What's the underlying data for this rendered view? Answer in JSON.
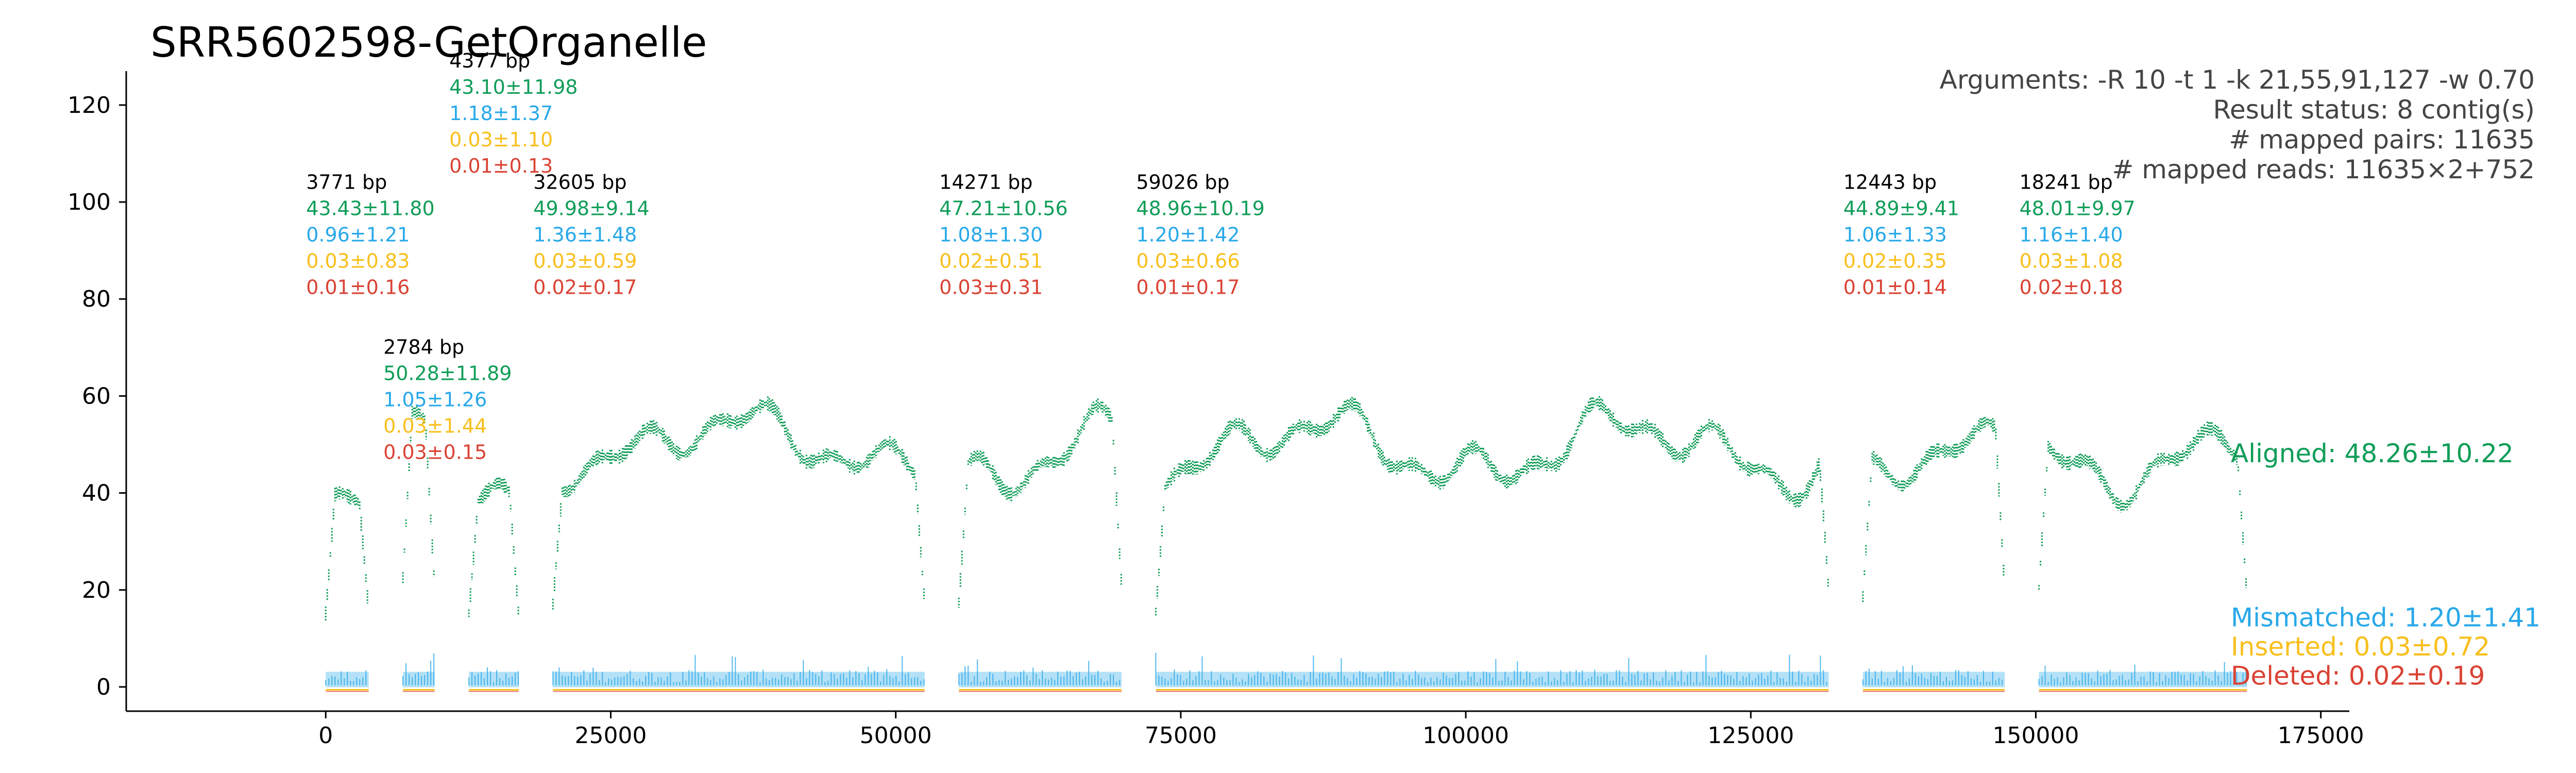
{
  "chart_data": {
    "type": "scatter",
    "title": "SRR5602598-GetOrganelle",
    "xlabel": "",
    "ylabel": "",
    "xlim": [
      -17500,
      177500
    ],
    "ylim": [
      -5,
      127
    ],
    "x_ticks": [
      0,
      25000,
      50000,
      75000,
      100000,
      125000,
      150000,
      175000
    ],
    "x_tick_labels": [
      "0",
      "25000",
      "50000",
      "75000",
      "100000",
      "125000",
      "150000",
      "175000"
    ],
    "y_ticks": [
      0,
      20,
      40,
      60,
      80,
      100,
      120
    ],
    "y_tick_labels": [
      "0",
      "20",
      "40",
      "60",
      "80",
      "100",
      "120"
    ],
    "grid": false,
    "colors": {
      "aligned": "#109d58",
      "mismatched": "#28a8e8",
      "inserted": "#f8bf1c",
      "deleted": "#da4234"
    },
    "arguments": [
      "Arguments: -R 10 -t 1 -k 21,55,91,127 -w 0.70",
      "Result status: 8 contig(s)",
      "# mapped pairs: 11635",
      "# mapped reads: 11635×2+752"
    ],
    "legend": {
      "aligned": "Aligned: 48.26±10.22",
      "mismatched": "Mismatched: 1.20±1.41",
      "inserted": "Inserted: 0.03±0.72",
      "deleted": "Deleted: 0.02±0.19"
    },
    "contigs": [
      {
        "start": 0,
        "end": 3771,
        "length": "3771 bp",
        "aligned": "43.43±11.80",
        "mismatched": "0.96±1.21",
        "inserted": "0.03±0.83",
        "deleted": "0.01±0.16",
        "mean": 43.43,
        "sd": 11.8,
        "label_y": 104
      },
      {
        "start": 6771,
        "end": 9555,
        "length": "2784 bp",
        "aligned": "50.28±11.89",
        "mismatched": "1.05±1.26",
        "inserted": "0.03±1.44",
        "deleted": "0.03±0.15",
        "mean": 50.28,
        "sd": 11.89,
        "label_y": 70
      },
      {
        "start": 12555,
        "end": 16932,
        "length": "4377 bp",
        "aligned": "43.10±11.98",
        "mismatched": "1.18±1.37",
        "inserted": "0.03±1.10",
        "deleted": "0.01±0.13",
        "mean": 43.1,
        "sd": 11.98,
        "label_y": 129
      },
      {
        "start": 19932,
        "end": 52537,
        "length": "32605 bp",
        "aligned": "49.98±9.14",
        "mismatched": "1.36±1.48",
        "inserted": "0.03±0.59",
        "deleted": "0.02±0.17",
        "mean": 49.98,
        "sd": 9.14,
        "label_y": 104
      },
      {
        "start": 55537,
        "end": 69808,
        "length": "14271 bp",
        "aligned": "47.21±10.56",
        "mismatched": "1.08±1.30",
        "inserted": "0.02±0.51",
        "deleted": "0.03±0.31",
        "mean": 47.21,
        "sd": 10.56,
        "label_y": 104
      },
      {
        "start": 72808,
        "end": 131834,
        "length": "59026 bp",
        "aligned": "48.96±10.19",
        "mismatched": "1.20±1.42",
        "inserted": "0.03±0.66",
        "deleted": "0.01±0.17",
        "mean": 48.96,
        "sd": 10.19,
        "label_y": 104
      },
      {
        "start": 134834,
        "end": 147277,
        "length": "12443 bp",
        "aligned": "44.89±9.41",
        "mismatched": "1.06±1.33",
        "inserted": "0.02±0.35",
        "deleted": "0.01±0.14",
        "mean": 44.89,
        "sd": 9.41,
        "label_y": 104
      },
      {
        "start": 150277,
        "end": 168518,
        "length": "18241 bp",
        "aligned": "48.01±9.97",
        "mismatched": "1.16±1.40",
        "inserted": "0.03±1.08",
        "deleted": "0.02±0.18",
        "mean": 48.01,
        "sd": 9.97,
        "label_y": 104
      }
    ]
  }
}
